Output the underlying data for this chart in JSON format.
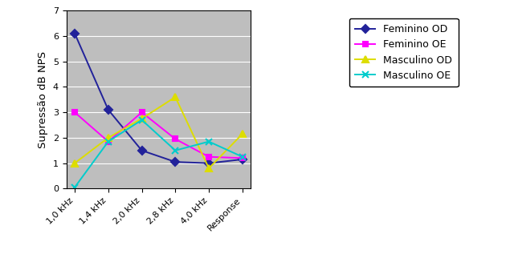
{
  "categories": [
    "1,0 kHz",
    "1,4 kHz",
    "2,0 kHz",
    "2,8 kHz",
    "4,0 kHz",
    "Response"
  ],
  "series": [
    {
      "label": "Feminino OD",
      "values": [
        6.1,
        3.1,
        1.5,
        1.05,
        1.0,
        1.15
      ],
      "color": "#22229A",
      "marker": "D",
      "markersize": 5,
      "linewidth": 1.4
    },
    {
      "label": "Feminino OE",
      "values": [
        3.0,
        1.85,
        3.0,
        1.95,
        1.25,
        1.2
      ],
      "color": "#FF00FF",
      "marker": "s",
      "markersize": 5,
      "linewidth": 1.4
    },
    {
      "label": "Masculino OD",
      "values": [
        1.0,
        2.0,
        2.75,
        3.6,
        0.8,
        2.15
      ],
      "color": "#DDDD00",
      "marker": "^",
      "markersize": 6,
      "linewidth": 1.4
    },
    {
      "label": "Masculino OE",
      "values": [
        0.05,
        1.85,
        2.7,
        1.5,
        1.85,
        1.25
      ],
      "color": "#00CCCC",
      "marker": "x",
      "markersize": 6,
      "linewidth": 1.4
    }
  ],
  "ylabel": "Supressão dB NPS",
  "ylim": [
    0,
    7
  ],
  "yticks": [
    0,
    1,
    2,
    3,
    4,
    5,
    6,
    7
  ],
  "plot_area_color": "#BEBEBE",
  "outer_bg_color": "#FFFFFF",
  "grid_color": "#FFFFFF",
  "legend_fontsize": 9,
  "ylabel_fontsize": 9.5,
  "tick_fontsize": 8
}
